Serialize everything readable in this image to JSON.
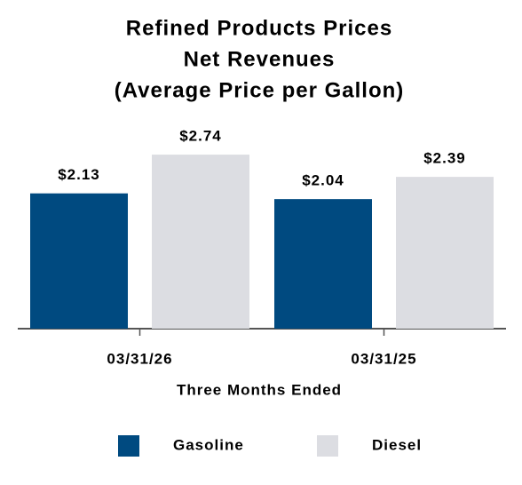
{
  "chart_data": {
    "type": "bar",
    "title_lines": [
      "Refined Products Prices",
      "Net Revenues",
      "(Average Price per Gallon)"
    ],
    "x_label": "Three Months Ended",
    "categories": [
      "03/31/26",
      "03/31/25"
    ],
    "series": [
      {
        "name": "Gasoline",
        "color": "#004a80",
        "values": [
          2.13,
          2.04
        ],
        "value_labels": [
          "$2.13",
          "$2.04"
        ]
      },
      {
        "name": "Diesel",
        "color": "#dcdde2",
        "values": [
          2.74,
          2.39
        ],
        "value_labels": [
          "$2.74",
          "$2.39"
        ]
      }
    ],
    "ylim": [
      0,
      3
    ]
  }
}
